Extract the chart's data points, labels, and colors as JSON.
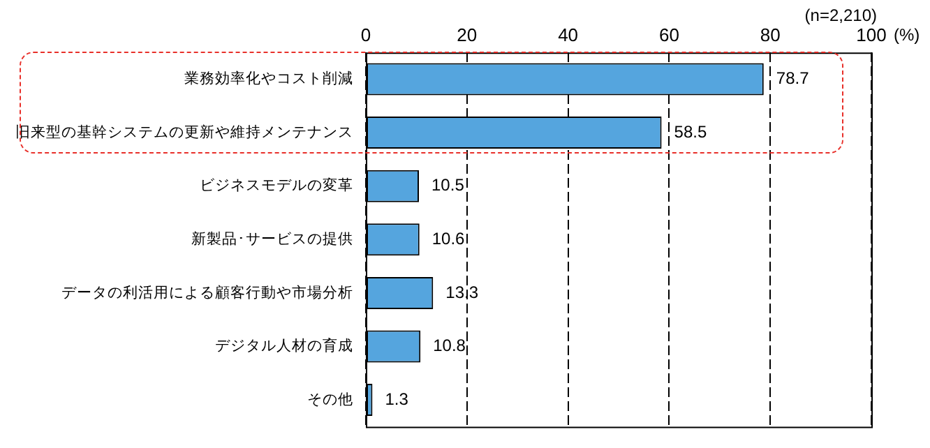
{
  "chart_data": {
    "type": "bar",
    "orientation": "horizontal",
    "xlabel": "(%)",
    "annotations": [
      "(n=2,210)"
    ],
    "categories": [
      "業務効率化やコスト削減",
      "旧来型の基幹システムの更新や維持メンテナンス",
      "ビジネスモデルの変革",
      "新製品･サービスの提供",
      "データの利活用による顧客行動や市場分析",
      "デジタル人材の育成",
      "その他"
    ],
    "values": [
      78.7,
      58.5,
      10.5,
      10.6,
      13.3,
      10.8,
      1.3
    ],
    "color": "#55a5de",
    "xlim": [
      0,
      100
    ],
    "xticks": [
      0,
      20,
      40,
      60,
      80,
      100
    ],
    "grid": "x",
    "data_labels": true
  }
}
